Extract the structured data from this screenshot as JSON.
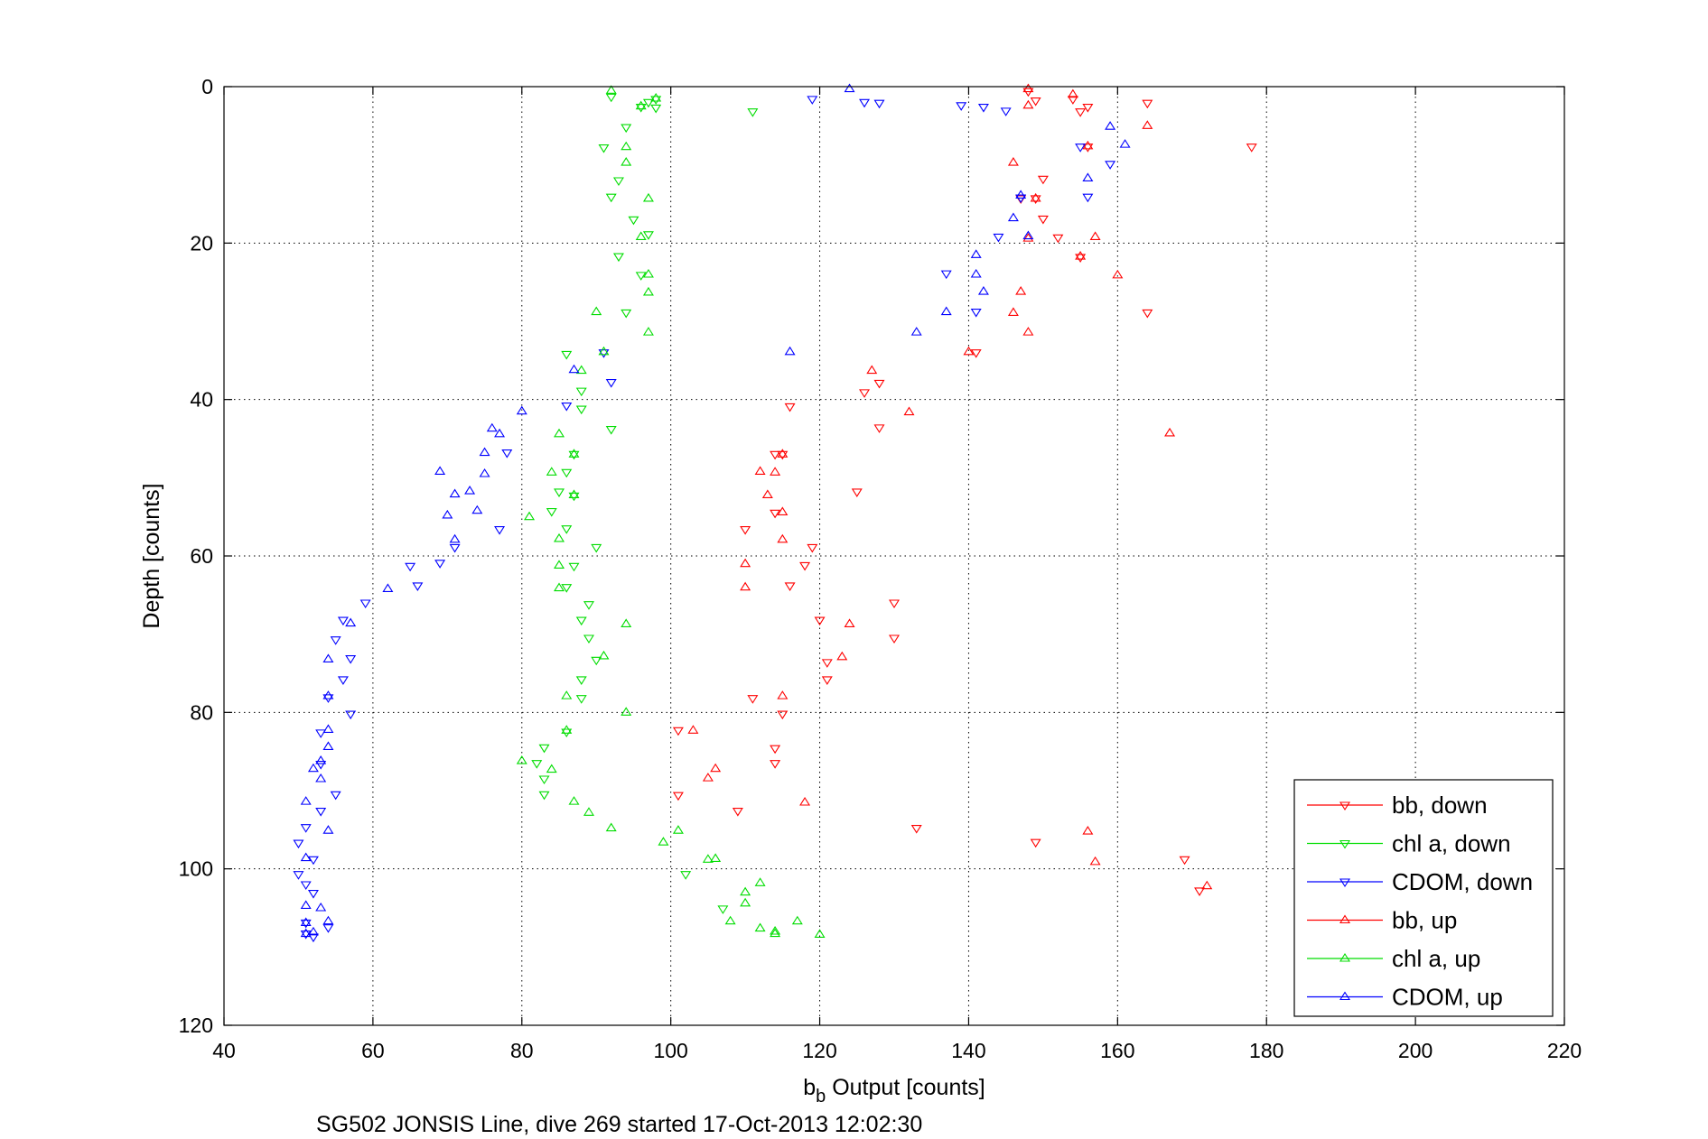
{
  "chart_data": {
    "type": "scatter",
    "xlabel_main": "b",
    "xlabel_sub": "b",
    "xlabel_rest": " Output [counts]",
    "ylabel": "Depth [counts]",
    "caption": "SG502 JONSIS Line, dive 269 started 17-Oct-2013 12:02:30",
    "xlim": [
      40,
      220
    ],
    "ylim": [
      0,
      120
    ],
    "y_reversed": true,
    "x_ticks": [
      40,
      60,
      80,
      100,
      120,
      140,
      160,
      180,
      200,
      220
    ],
    "y_ticks": [
      0,
      20,
      40,
      60,
      80,
      100,
      120
    ],
    "grid": true,
    "legend_position": "bottom-right",
    "series": [
      {
        "name": "bb, down",
        "color": "#ff0000",
        "marker": "triangle-down",
        "points": [
          [
            148,
            0.6
          ],
          [
            149,
            1.8
          ],
          [
            154,
            1.6
          ],
          [
            156,
            2.6
          ],
          [
            164,
            2.1
          ],
          [
            155,
            3.2
          ],
          [
            156,
            7.7
          ],
          [
            178,
            7.7
          ],
          [
            150,
            11.8
          ],
          [
            149,
            14.3
          ],
          [
            147,
            14.3
          ],
          [
            150,
            16.9
          ],
          [
            152,
            19.3
          ],
          [
            155,
            21.8
          ],
          [
            164,
            28.9
          ],
          [
            141,
            34.0
          ],
          [
            128,
            37.9
          ],
          [
            126,
            39.1
          ],
          [
            116,
            40.9
          ],
          [
            128,
            43.6
          ],
          [
            115,
            47.0
          ],
          [
            114,
            47.0
          ],
          [
            125,
            51.8
          ],
          [
            114,
            54.5
          ],
          [
            110,
            56.6
          ],
          [
            119,
            58.9
          ],
          [
            118,
            61.2
          ],
          [
            116,
            63.8
          ],
          [
            130,
            66.0
          ],
          [
            120,
            68.2
          ],
          [
            130,
            70.5
          ],
          [
            121,
            73.6
          ],
          [
            121,
            75.8
          ],
          [
            111,
            78.2
          ],
          [
            115,
            80.2
          ],
          [
            101,
            82.3
          ],
          [
            114,
            84.6
          ],
          [
            114,
            86.5
          ],
          [
            101,
            90.6
          ],
          [
            109,
            92.6
          ],
          [
            133,
            94.8
          ],
          [
            149,
            96.6
          ],
          [
            169,
            98.8
          ],
          [
            171,
            102.8
          ]
        ]
      },
      {
        "name": "chl a, down",
        "color": "#00dd00",
        "marker": "triangle-down",
        "points": [
          [
            92,
            1.3
          ],
          [
            98,
            1.6
          ],
          [
            97,
            2.0
          ],
          [
            98,
            2.7
          ],
          [
            96,
            2.6
          ],
          [
            111,
            3.2
          ],
          [
            94,
            5.2
          ],
          [
            91,
            7.8
          ],
          [
            93,
            12.0
          ],
          [
            92,
            14.1
          ],
          [
            95,
            17.0
          ],
          [
            97,
            18.9
          ],
          [
            93,
            21.7
          ],
          [
            96,
            24.1
          ],
          [
            94,
            28.9
          ],
          [
            86,
            34.2
          ],
          [
            88,
            38.9
          ],
          [
            88,
            41.2
          ],
          [
            92,
            43.8
          ],
          [
            87,
            47.0
          ],
          [
            86,
            49.3
          ],
          [
            85,
            51.8
          ],
          [
            87,
            52.3
          ],
          [
            84,
            54.3
          ],
          [
            86,
            56.5
          ],
          [
            90,
            58.9
          ],
          [
            87,
            61.3
          ],
          [
            86,
            64.0
          ],
          [
            89,
            66.2
          ],
          [
            88,
            68.2
          ],
          [
            89,
            70.5
          ],
          [
            90,
            73.3
          ],
          [
            88,
            75.8
          ],
          [
            88,
            78.2
          ],
          [
            86,
            82.5
          ],
          [
            83,
            84.5
          ],
          [
            82,
            86.5
          ],
          [
            83,
            88.5
          ],
          [
            83,
            90.5
          ],
          [
            102,
            100.7
          ],
          [
            107,
            105.1
          ]
        ]
      },
      {
        "name": "CDOM, down",
        "color": "#0000ff",
        "marker": "triangle-down",
        "points": [
          [
            119,
            1.6
          ],
          [
            126,
            2.0
          ],
          [
            128,
            2.1
          ],
          [
            139,
            2.4
          ],
          [
            142,
            2.6
          ],
          [
            145,
            3.1
          ],
          [
            155,
            7.7
          ],
          [
            159,
            9.9
          ],
          [
            156,
            14.1
          ],
          [
            147,
            14.2
          ],
          [
            144,
            19.2
          ],
          [
            137,
            23.9
          ],
          [
            141,
            28.8
          ],
          [
            91,
            34.0
          ],
          [
            92,
            37.8
          ],
          [
            86,
            40.8
          ],
          [
            78,
            46.8
          ],
          [
            77,
            56.6
          ],
          [
            71,
            58.9
          ],
          [
            69,
            60.9
          ],
          [
            65,
            61.3
          ],
          [
            66,
            63.8
          ],
          [
            59,
            66.0
          ],
          [
            56,
            68.2
          ],
          [
            55,
            70.7
          ],
          [
            57,
            73.1
          ],
          [
            56,
            75.8
          ],
          [
            54,
            78.1
          ],
          [
            57,
            80.2
          ],
          [
            53,
            82.6
          ],
          [
            53,
            86.6
          ],
          [
            55,
            90.5
          ],
          [
            53,
            92.6
          ],
          [
            51,
            94.7
          ],
          [
            50,
            96.7
          ],
          [
            52,
            98.8
          ],
          [
            50,
            100.7
          ],
          [
            51,
            102.0
          ],
          [
            52,
            103.1
          ],
          [
            51,
            106.9
          ],
          [
            54,
            107.5
          ],
          [
            52,
            108.7
          ],
          [
            51,
            108.3
          ]
        ]
      },
      {
        "name": "bb, up",
        "color": "#ff0000",
        "marker": "triangle-up",
        "points": [
          [
            148,
            0.3
          ],
          [
            154,
            1.0
          ],
          [
            148,
            2.4
          ],
          [
            164,
            5.0
          ],
          [
            156,
            7.6
          ],
          [
            146,
            9.7
          ],
          [
            149,
            14.3
          ],
          [
            157,
            19.2
          ],
          [
            148,
            19.4
          ],
          [
            155,
            21.7
          ],
          [
            160,
            24.1
          ],
          [
            147,
            26.2
          ],
          [
            146,
            28.9
          ],
          [
            148,
            31.4
          ],
          [
            140,
            33.9
          ],
          [
            127,
            36.3
          ],
          [
            132,
            41.6
          ],
          [
            167,
            44.3
          ],
          [
            115,
            47.0
          ],
          [
            112,
            49.2
          ],
          [
            114,
            49.3
          ],
          [
            113,
            52.2
          ],
          [
            115,
            54.4
          ],
          [
            115,
            57.9
          ],
          [
            110,
            61.0
          ],
          [
            110,
            64.0
          ],
          [
            124,
            68.7
          ],
          [
            123,
            72.9
          ],
          [
            103,
            82.3
          ],
          [
            115,
            77.9
          ],
          [
            106,
            87.2
          ],
          [
            105,
            88.4
          ],
          [
            118,
            91.5
          ],
          [
            156,
            95.2
          ],
          [
            157,
            99.1
          ],
          [
            172,
            102.2
          ]
        ]
      },
      {
        "name": "chl a, up",
        "color": "#00dd00",
        "marker": "triangle-up",
        "points": [
          [
            92,
            0.5
          ],
          [
            98,
            1.5
          ],
          [
            96,
            2.5
          ],
          [
            94,
            7.7
          ],
          [
            94,
            9.7
          ],
          [
            97,
            14.3
          ],
          [
            96,
            19.2
          ],
          [
            97,
            24.0
          ],
          [
            97,
            26.3
          ],
          [
            90,
            28.8
          ],
          [
            97,
            31.4
          ],
          [
            91,
            33.9
          ],
          [
            88,
            36.3
          ],
          [
            85,
            44.4
          ],
          [
            87,
            47.0
          ],
          [
            84,
            49.3
          ],
          [
            87,
            52.2
          ],
          [
            81,
            55.0
          ],
          [
            85,
            57.8
          ],
          [
            85,
            61.2
          ],
          [
            85,
            64.1
          ],
          [
            94,
            68.7
          ],
          [
            91,
            72.8
          ],
          [
            86,
            77.9
          ],
          [
            94,
            80.0
          ],
          [
            86,
            82.3
          ],
          [
            80,
            86.2
          ],
          [
            84,
            87.3
          ],
          [
            87,
            91.4
          ],
          [
            89,
            92.8
          ],
          [
            92,
            94.8
          ],
          [
            99,
            96.6
          ],
          [
            101,
            95.1
          ],
          [
            105,
            98.8
          ],
          [
            106,
            98.7
          ],
          [
            112,
            101.8
          ],
          [
            110,
            103.0
          ],
          [
            110,
            104.4
          ],
          [
            108,
            106.7
          ],
          [
            112,
            107.6
          ],
          [
            114,
            108.0
          ],
          [
            114,
            108.3
          ],
          [
            117,
            106.7
          ],
          [
            120,
            108.4
          ]
        ]
      },
      {
        "name": "CDOM, up",
        "color": "#0000ff",
        "marker": "triangle-up",
        "points": [
          [
            124,
            0.3
          ],
          [
            159,
            5.1
          ],
          [
            161,
            7.4
          ],
          [
            156,
            11.7
          ],
          [
            147,
            13.9
          ],
          [
            146,
            16.8
          ],
          [
            148,
            19.1
          ],
          [
            141,
            21.5
          ],
          [
            141,
            24.0
          ],
          [
            142,
            26.2
          ],
          [
            137,
            28.8
          ],
          [
            133,
            31.4
          ],
          [
            116,
            33.9
          ],
          [
            87,
            36.2
          ],
          [
            80,
            41.5
          ],
          [
            76,
            43.7
          ],
          [
            77,
            44.4
          ],
          [
            75,
            46.8
          ],
          [
            69,
            49.2
          ],
          [
            75,
            49.5
          ],
          [
            73,
            51.7
          ],
          [
            71,
            52.1
          ],
          [
            74,
            54.2
          ],
          [
            70,
            54.8
          ],
          [
            71,
            57.9
          ],
          [
            62,
            64.2
          ],
          [
            57,
            68.6
          ],
          [
            54,
            73.2
          ],
          [
            54,
            77.9
          ],
          [
            54,
            82.2
          ],
          [
            54,
            84.4
          ],
          [
            53,
            86.2
          ],
          [
            52,
            87.2
          ],
          [
            53,
            88.5
          ],
          [
            51,
            91.4
          ],
          [
            54,
            95.1
          ],
          [
            51,
            98.6
          ],
          [
            51,
            104.7
          ],
          [
            53,
            105.0
          ],
          [
            54,
            106.7
          ],
          [
            51,
            106.9
          ],
          [
            52,
            108.1
          ],
          [
            51,
            108.3
          ]
        ]
      }
    ]
  }
}
